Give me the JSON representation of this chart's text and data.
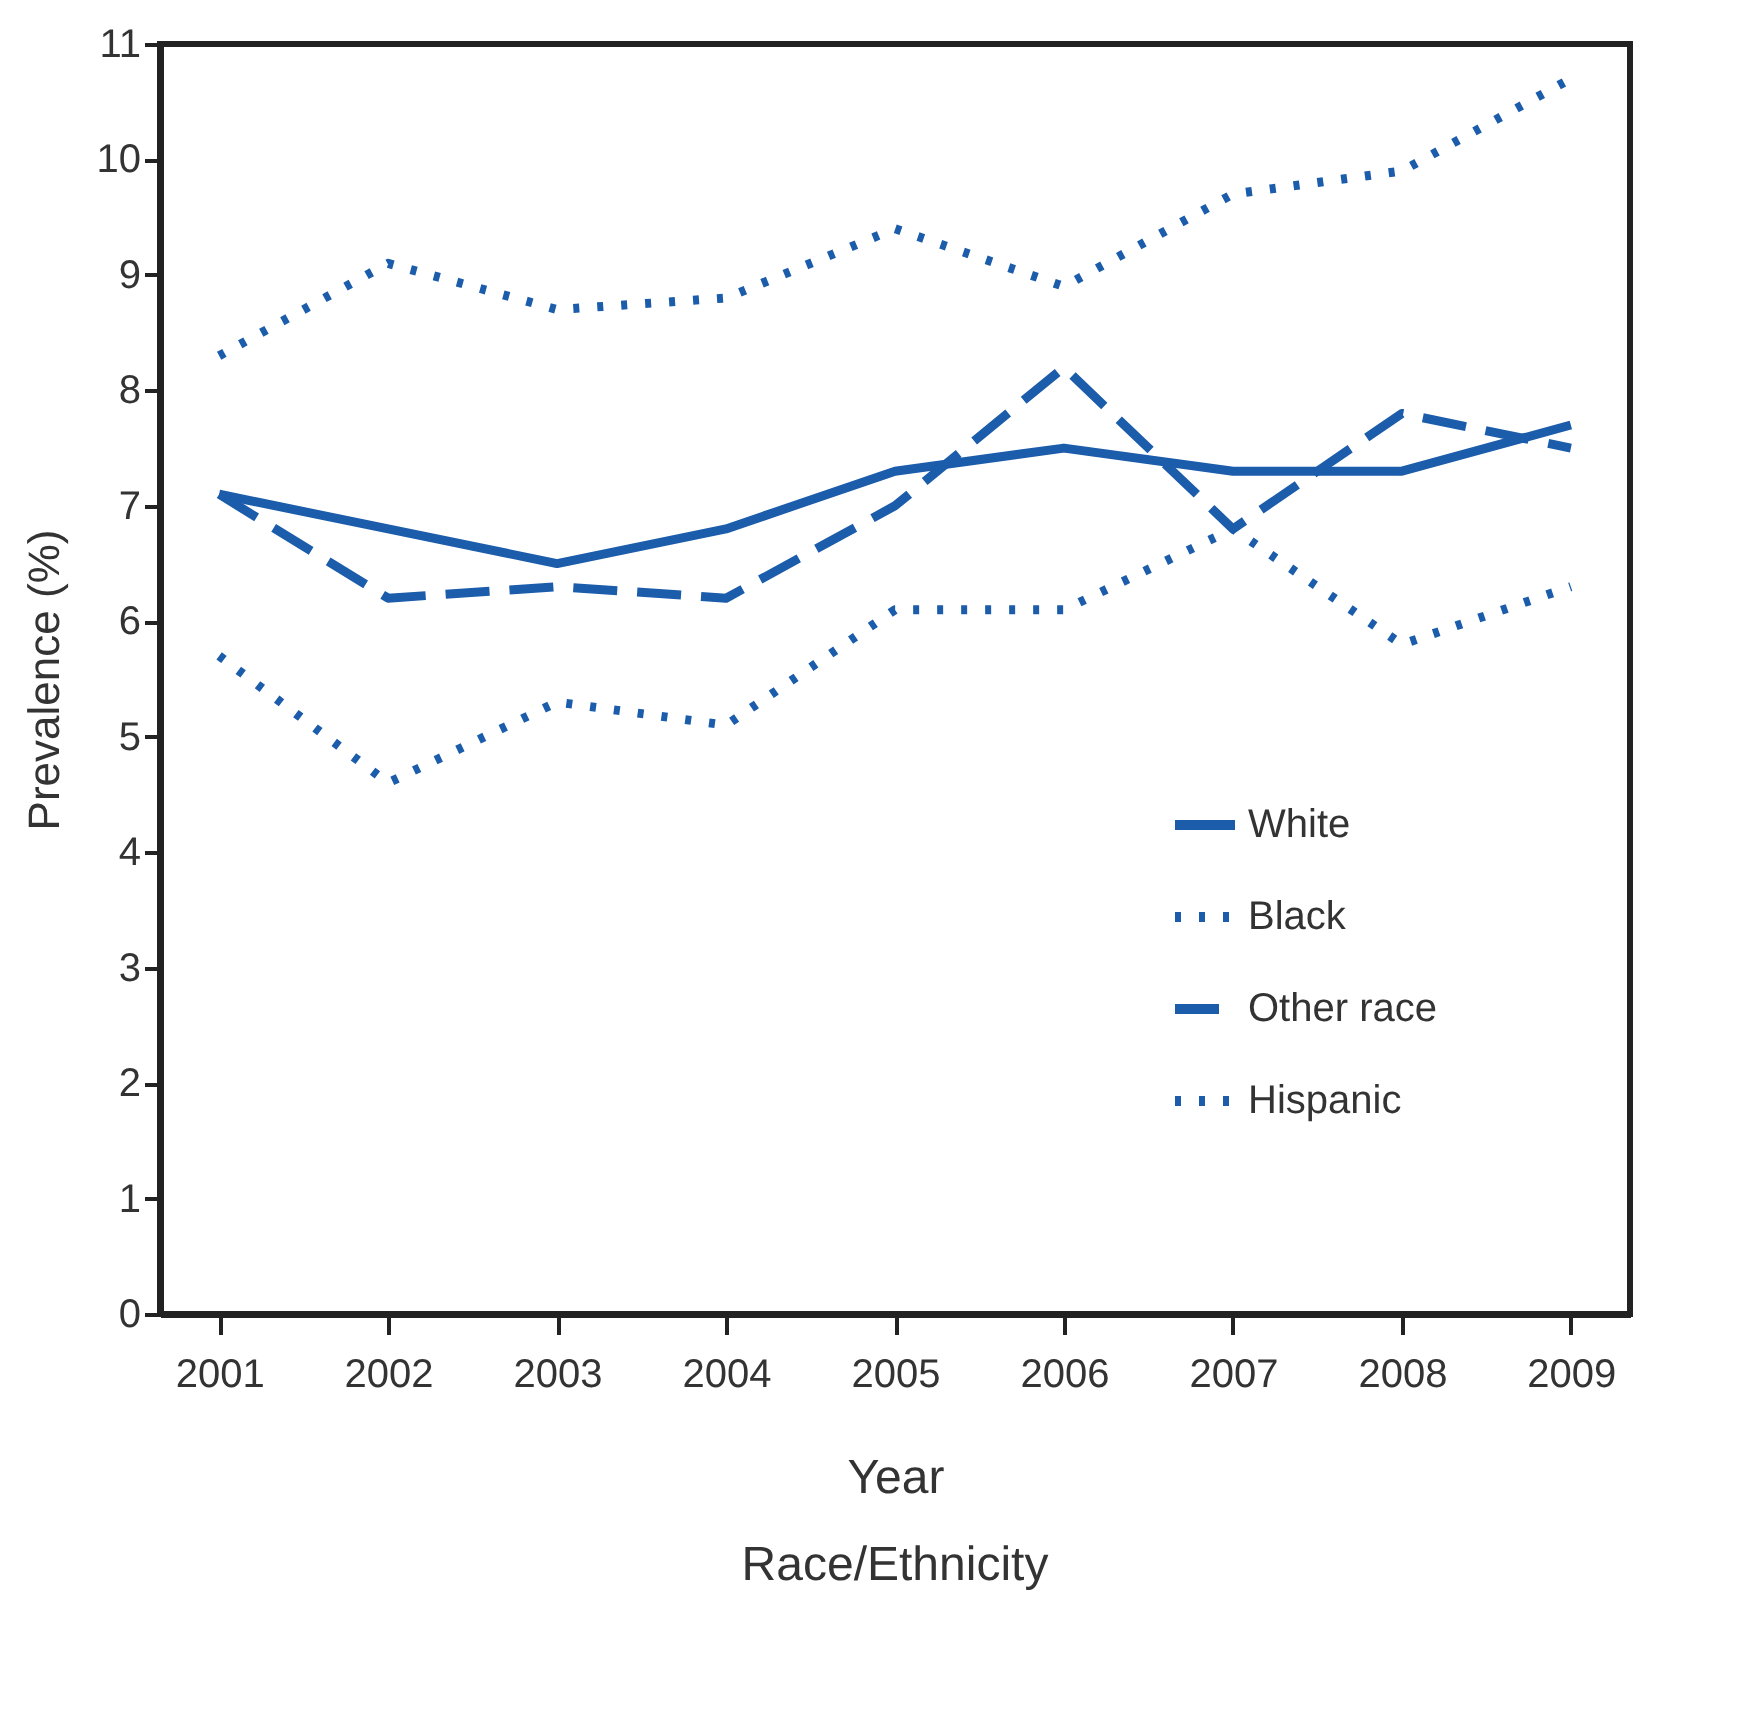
{
  "chart_data": {
    "type": "line",
    "xlabel": "Year",
    "ylabel": "Prevalence (%)",
    "annotations": [
      "Race/Ethnicity"
    ],
    "categories": [
      "2001",
      "2002",
      "2003",
      "2004",
      "2005",
      "2006",
      "2007",
      "2008",
      "2009"
    ],
    "series": [
      {
        "name": "White",
        "color": "#1b5cab",
        "line_style": "solid",
        "values": [
          7.1,
          6.8,
          6.5,
          6.8,
          7.3,
          7.5,
          7.3,
          7.3,
          7.7
        ]
      },
      {
        "name": "Black",
        "color": "#1b5cab",
        "line_style": "dotted",
        "values": [
          8.3,
          9.1,
          8.7,
          8.8,
          9.4,
          8.9,
          9.7,
          9.9,
          10.7
        ]
      },
      {
        "name": "Other race",
        "color": "#1b5cab",
        "line_style": "dashed",
        "values": [
          7.1,
          6.2,
          6.3,
          6.2,
          7.0,
          8.2,
          6.8,
          7.8,
          7.5
        ]
      },
      {
        "name": "Hispanic",
        "color": "#1b5cab",
        "line_style": "dotted",
        "values": [
          5.7,
          4.6,
          5.3,
          5.1,
          6.1,
          6.1,
          6.8,
          5.8,
          6.3
        ]
      }
    ],
    "ylim": [
      0,
      11
    ],
    "yticks": [
      0,
      1,
      2,
      3,
      4,
      5,
      6,
      7,
      8,
      9,
      10,
      11
    ],
    "grid": false,
    "legend": "bottom right",
    "marker": "none"
  }
}
